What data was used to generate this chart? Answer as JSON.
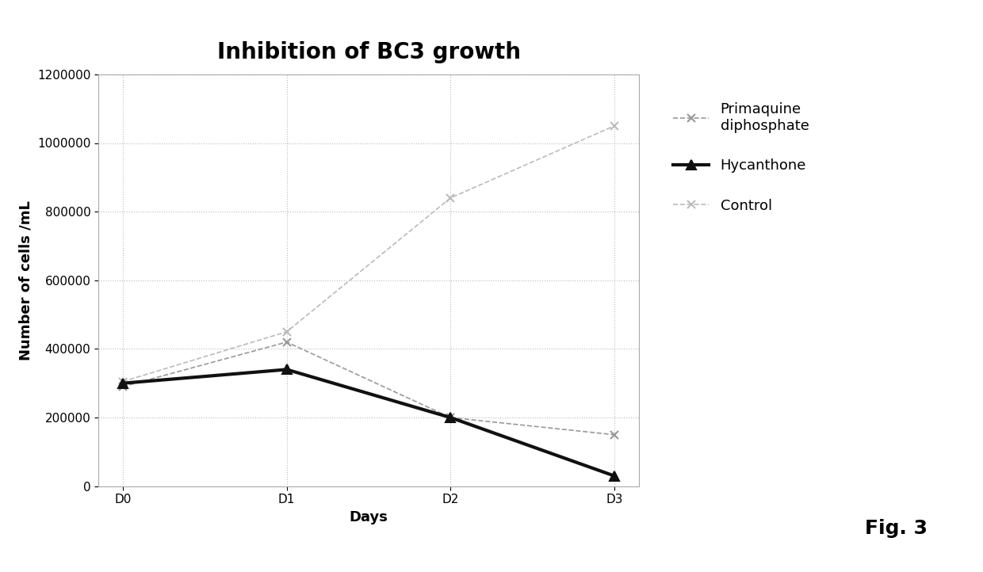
{
  "title": "Inhibition of BC3 growth",
  "xlabel": "Days",
  "ylabel": "Number of cells /mL",
  "x_labels": [
    "D0",
    "D1",
    "D2",
    "D3"
  ],
  "x_values": [
    0,
    1,
    2,
    3
  ],
  "series": [
    {
      "label": "Primaquine\ndiphosphate",
      "values": [
        290000,
        420000,
        200000,
        150000
      ],
      "color": "#999999",
      "marker": "x",
      "linewidth": 1.2,
      "markersize": 7,
      "linestyle": "--",
      "markeredgewidth": 1.5,
      "zorder": 2
    },
    {
      "label": "Hycanthone",
      "values": [
        300000,
        340000,
        200000,
        30000
      ],
      "color": "#111111",
      "marker": "^",
      "linewidth": 3.0,
      "markersize": 9,
      "linestyle": "-",
      "markeredgewidth": 1.5,
      "zorder": 3
    },
    {
      "label": "Control",
      "values": [
        305000,
        450000,
        840000,
        1050000
      ],
      "color": "#bbbbbb",
      "marker": "x",
      "linewidth": 1.2,
      "markersize": 7,
      "linestyle": "--",
      "markeredgewidth": 1.5,
      "zorder": 1
    }
  ],
  "ylim": [
    0,
    1200000
  ],
  "yticks": [
    0,
    200000,
    400000,
    600000,
    800000,
    1000000,
    1200000
  ],
  "fig_width": 12.4,
  "fig_height": 7.22,
  "title_fontsize": 20,
  "axis_label_fontsize": 13,
  "tick_fontsize": 11,
  "legend_fontsize": 13,
  "background_color": "#ffffff",
  "grid_color": "#bbbbbb",
  "fig3_label": "Fig. 3"
}
